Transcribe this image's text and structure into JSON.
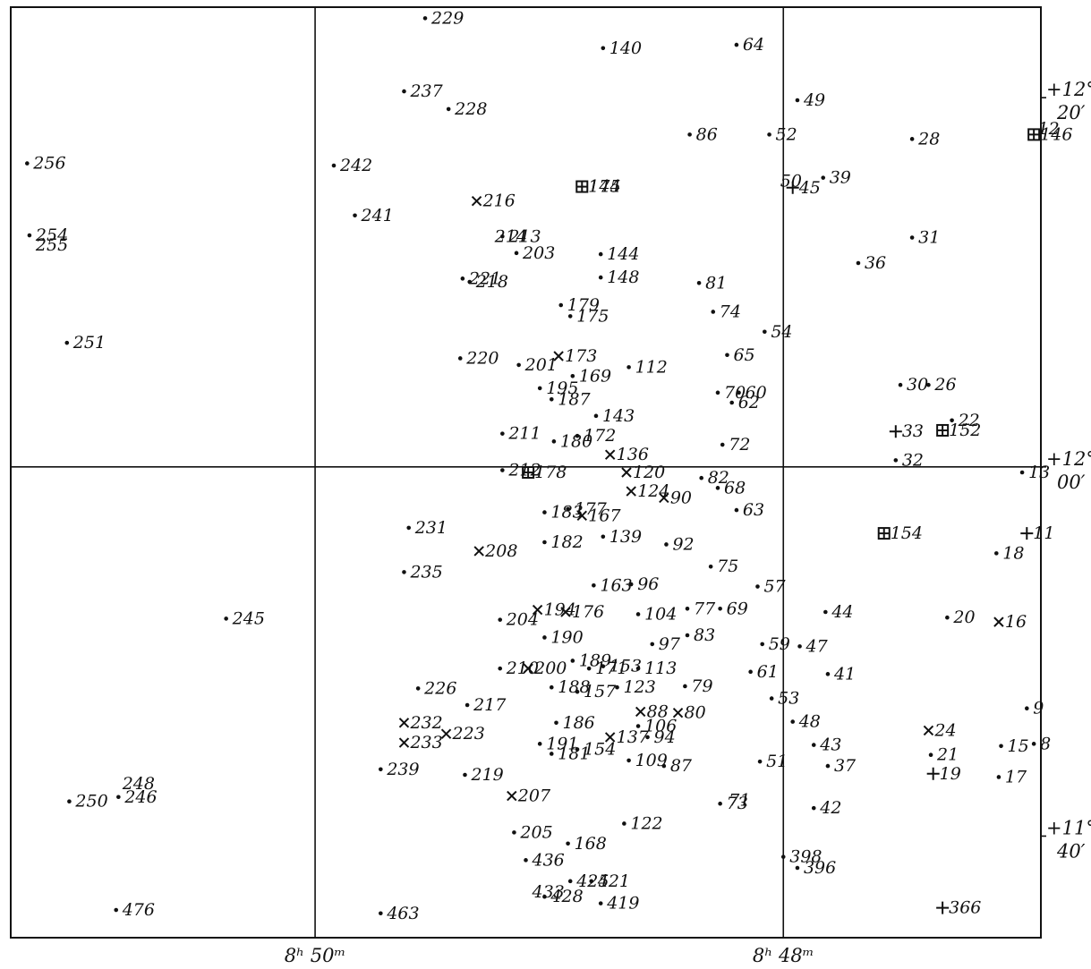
{
  "chart_data": {
    "type": "scatter",
    "xlim": [
      51.3,
      46.9
    ],
    "ylim": [
      11.575,
      12.415
    ],
    "grid": true,
    "x_ticks": [
      {
        "value": 50,
        "label": "8ʰ 50ᵐ"
      },
      {
        "value": 48,
        "label": "8ʰ 48ᵐ"
      }
    ],
    "y_ticks": [
      {
        "value": 12.3333,
        "label_a": "+12°",
        "label_b": "20′"
      },
      {
        "value": 12.0,
        "label_a": "+12°",
        "label_b": "00′"
      },
      {
        "value": 11.6667,
        "label_a": "+11°",
        "label_b": "40′"
      }
    ],
    "stars": [
      {
        "label": "229",
        "ra": 49.53,
        "dec": 12.405,
        "marker": "dot"
      },
      {
        "label": "140",
        "ra": 48.77,
        "dec": 12.378,
        "marker": "dot"
      },
      {
        "label": "64",
        "ra": 48.2,
        "dec": 12.381,
        "marker": "dot"
      },
      {
        "label": "237",
        "ra": 49.62,
        "dec": 12.339,
        "marker": "dot"
      },
      {
        "label": "228",
        "ra": 49.43,
        "dec": 12.323,
        "marker": "dot"
      },
      {
        "label": "49",
        "ra": 47.94,
        "dec": 12.331,
        "marker": "dot"
      },
      {
        "label": "86",
        "ra": 48.4,
        "dec": 12.3,
        "marker": "dot"
      },
      {
        "label": "52",
        "ra": 48.06,
        "dec": 12.3,
        "marker": "dot"
      },
      {
        "label": "12",
        "ra": 46.94,
        "dec": 12.305,
        "marker": "none"
      },
      {
        "label": "146",
        "ra": 46.93,
        "dec": 12.3,
        "marker": "boxcross"
      },
      {
        "label": "28",
        "ra": 47.45,
        "dec": 12.296,
        "marker": "dot"
      },
      {
        "label": "256",
        "ra": 51.23,
        "dec": 12.274,
        "marker": "dot"
      },
      {
        "label": "242",
        "ra": 49.92,
        "dec": 12.272,
        "marker": "dot"
      },
      {
        "label": "145",
        "ra": 48.86,
        "dec": 12.253,
        "marker": "none"
      },
      {
        "label": "174",
        "ra": 48.86,
        "dec": 12.253,
        "marker": "boxcross"
      },
      {
        "label": "50",
        "ra": 48.04,
        "dec": 12.258,
        "marker": "none"
      },
      {
        "label": "45",
        "ra": 47.96,
        "dec": 12.252,
        "marker": "plus"
      },
      {
        "label": "39",
        "ra": 47.83,
        "dec": 12.261,
        "marker": "dot"
      },
      {
        "label": "216",
        "ra": 49.31,
        "dec": 12.24,
        "marker": "cross"
      },
      {
        "label": "241",
        "ra": 49.83,
        "dec": 12.227,
        "marker": "dot"
      },
      {
        "label": "254",
        "ra": 51.22,
        "dec": 12.209,
        "marker": "dot"
      },
      {
        "label": "255",
        "ra": 51.22,
        "dec": 12.2,
        "marker": "none"
      },
      {
        "label": "214",
        "ra": 49.26,
        "dec": 12.208,
        "marker": "none"
      },
      {
        "label": "213",
        "ra": 49.2,
        "dec": 12.208,
        "marker": "dot"
      },
      {
        "label": "203",
        "ra": 49.14,
        "dec": 12.193,
        "marker": "dot"
      },
      {
        "label": "144",
        "ra": 48.78,
        "dec": 12.192,
        "marker": "dot"
      },
      {
        "label": "31",
        "ra": 47.45,
        "dec": 12.207,
        "marker": "dot"
      },
      {
        "label": "36",
        "ra": 47.68,
        "dec": 12.184,
        "marker": "dot"
      },
      {
        "label": "221",
        "ra": 49.37,
        "dec": 12.17,
        "marker": "dot"
      },
      {
        "label": "218",
        "ra": 49.34,
        "dec": 12.167,
        "marker": "dot"
      },
      {
        "label": "148",
        "ra": 48.78,
        "dec": 12.171,
        "marker": "dot"
      },
      {
        "label": "179",
        "ra": 48.95,
        "dec": 12.146,
        "marker": "dot"
      },
      {
        "label": "175",
        "ra": 48.91,
        "dec": 12.136,
        "marker": "dot"
      },
      {
        "label": "81",
        "ra": 48.36,
        "dec": 12.166,
        "marker": "dot"
      },
      {
        "label": "74",
        "ra": 48.3,
        "dec": 12.14,
        "marker": "dot"
      },
      {
        "label": "54",
        "ra": 48.08,
        "dec": 12.122,
        "marker": "dot"
      },
      {
        "label": "251",
        "ra": 51.06,
        "dec": 12.112,
        "marker": "dot"
      },
      {
        "label": "173",
        "ra": 48.96,
        "dec": 12.1,
        "marker": "cross"
      },
      {
        "label": "220",
        "ra": 49.38,
        "dec": 12.098,
        "marker": "dot"
      },
      {
        "label": "201",
        "ra": 49.13,
        "dec": 12.092,
        "marker": "dot"
      },
      {
        "label": "169",
        "ra": 48.9,
        "dec": 12.082,
        "marker": "dot"
      },
      {
        "label": "112",
        "ra": 48.66,
        "dec": 12.09,
        "marker": "dot"
      },
      {
        "label": "65",
        "ra": 48.24,
        "dec": 12.101,
        "marker": "dot"
      },
      {
        "label": "195",
        "ra": 49.04,
        "dec": 12.071,
        "marker": "dot"
      },
      {
        "label": "187",
        "ra": 48.99,
        "dec": 12.061,
        "marker": "dot"
      },
      {
        "label": "70",
        "ra": 48.28,
        "dec": 12.067,
        "marker": "dot"
      },
      {
        "label": "60",
        "ra": 48.19,
        "dec": 12.067,
        "marker": "dot"
      },
      {
        "label": "62",
        "ra": 48.22,
        "dec": 12.058,
        "marker": "dot"
      },
      {
        "label": "30",
        "ra": 47.5,
        "dec": 12.074,
        "marker": "dot"
      },
      {
        "label": "26",
        "ra": 47.38,
        "dec": 12.074,
        "marker": "dot"
      },
      {
        "label": "143",
        "ra": 48.8,
        "dec": 12.046,
        "marker": "dot"
      },
      {
        "label": "211",
        "ra": 49.2,
        "dec": 12.03,
        "marker": "dot"
      },
      {
        "label": "180",
        "ra": 48.98,
        "dec": 12.023,
        "marker": "dot"
      },
      {
        "label": "172",
        "ra": 48.88,
        "dec": 12.028,
        "marker": "dot"
      },
      {
        "label": "33",
        "ra": 47.52,
        "dec": 12.032,
        "marker": "plus"
      },
      {
        "label": "152",
        "ra": 47.32,
        "dec": 12.033,
        "marker": "boxcross"
      },
      {
        "label": "22",
        "ra": 47.28,
        "dec": 12.042,
        "marker": "dot"
      },
      {
        "label": "136",
        "ra": 48.74,
        "dec": 12.011,
        "marker": "cross"
      },
      {
        "label": "72",
        "ra": 48.26,
        "dec": 12.02,
        "marker": "dot"
      },
      {
        "label": "32",
        "ra": 47.52,
        "dec": 12.006,
        "marker": "dot"
      },
      {
        "label": "212",
        "ra": 49.2,
        "dec": 11.997,
        "marker": "dot"
      },
      {
        "label": "178",
        "ra": 49.09,
        "dec": 11.995,
        "marker": "boxcross"
      },
      {
        "label": "120",
        "ra": 48.67,
        "dec": 11.995,
        "marker": "cross"
      },
      {
        "label": "82",
        "ra": 48.35,
        "dec": 11.99,
        "marker": "dot"
      },
      {
        "label": "68",
        "ra": 48.28,
        "dec": 11.981,
        "marker": "dot"
      },
      {
        "label": "13",
        "ra": 46.98,
        "dec": 11.995,
        "marker": "dot"
      },
      {
        "label": "124",
        "ra": 48.65,
        "dec": 11.978,
        "marker": "cross"
      },
      {
        "label": "90",
        "ra": 48.51,
        "dec": 11.972,
        "marker": "cross"
      },
      {
        "label": "63",
        "ra": 48.2,
        "dec": 11.961,
        "marker": "dot"
      },
      {
        "label": "231",
        "ra": 49.6,
        "dec": 11.945,
        "marker": "dot"
      },
      {
        "label": "183",
        "ra": 49.02,
        "dec": 11.959,
        "marker": "dot"
      },
      {
        "label": "177",
        "ra": 48.92,
        "dec": 11.962,
        "marker": "dot"
      },
      {
        "label": "167",
        "ra": 48.86,
        "dec": 11.956,
        "marker": "cross"
      },
      {
        "label": "154",
        "ra": 47.57,
        "dec": 11.94,
        "marker": "boxcross"
      },
      {
        "label": "11",
        "ra": 46.96,
        "dec": 11.94,
        "marker": "plus"
      },
      {
        "label": "208",
        "ra": 49.3,
        "dec": 11.924,
        "marker": "cross"
      },
      {
        "label": "182",
        "ra": 49.02,
        "dec": 11.932,
        "marker": "dot"
      },
      {
        "label": "139",
        "ra": 48.77,
        "dec": 11.937,
        "marker": "dot"
      },
      {
        "label": "92",
        "ra": 48.5,
        "dec": 11.93,
        "marker": "dot"
      },
      {
        "label": "18",
        "ra": 47.09,
        "dec": 11.922,
        "marker": "dot"
      },
      {
        "label": "235",
        "ra": 49.62,
        "dec": 11.905,
        "marker": "dot"
      },
      {
        "label": "75",
        "ra": 48.31,
        "dec": 11.91,
        "marker": "dot"
      },
      {
        "label": "163",
        "ra": 48.81,
        "dec": 11.893,
        "marker": "dot"
      },
      {
        "label": "96",
        "ra": 48.65,
        "dec": 11.894,
        "marker": "dot"
      },
      {
        "label": "57",
        "ra": 48.11,
        "dec": 11.892,
        "marker": "dot"
      },
      {
        "label": "245",
        "ra": 50.38,
        "dec": 11.863,
        "marker": "dot"
      },
      {
        "label": "204",
        "ra": 49.21,
        "dec": 11.862,
        "marker": "dot"
      },
      {
        "label": "194",
        "ra": 49.05,
        "dec": 11.871,
        "marker": "cross"
      },
      {
        "label": "176",
        "ra": 48.93,
        "dec": 11.869,
        "marker": "cross"
      },
      {
        "label": "104",
        "ra": 48.62,
        "dec": 11.867,
        "marker": "dot"
      },
      {
        "label": "77",
        "ra": 48.41,
        "dec": 11.872,
        "marker": "dot"
      },
      {
        "label": "69",
        "ra": 48.27,
        "dec": 11.872,
        "marker": "dot"
      },
      {
        "label": "44",
        "ra": 47.82,
        "dec": 11.869,
        "marker": "dot"
      },
      {
        "label": "20",
        "ra": 47.3,
        "dec": 11.864,
        "marker": "dot"
      },
      {
        "label": "16",
        "ra": 47.08,
        "dec": 11.86,
        "marker": "cross"
      },
      {
        "label": "190",
        "ra": 49.02,
        "dec": 11.846,
        "marker": "dot"
      },
      {
        "label": "83",
        "ra": 48.41,
        "dec": 11.848,
        "marker": "dot"
      },
      {
        "label": "59",
        "ra": 48.09,
        "dec": 11.84,
        "marker": "dot"
      },
      {
        "label": "47",
        "ra": 47.93,
        "dec": 11.838,
        "marker": "dot"
      },
      {
        "label": "97",
        "ra": 48.56,
        "dec": 11.84,
        "marker": "dot"
      },
      {
        "label": "210",
        "ra": 49.21,
        "dec": 11.818,
        "marker": "dot"
      },
      {
        "label": "200",
        "ra": 49.09,
        "dec": 11.818,
        "marker": "cross"
      },
      {
        "label": "189",
        "ra": 48.9,
        "dec": 11.825,
        "marker": "dot"
      },
      {
        "label": "171",
        "ra": 48.83,
        "dec": 11.818,
        "marker": "dot"
      },
      {
        "label": "153",
        "ra": 48.77,
        "dec": 11.82,
        "marker": "dot"
      },
      {
        "label": "113",
        "ra": 48.62,
        "dec": 11.818,
        "marker": "dot"
      },
      {
        "label": "61",
        "ra": 48.14,
        "dec": 11.815,
        "marker": "dot"
      },
      {
        "label": "41",
        "ra": 47.81,
        "dec": 11.813,
        "marker": "dot"
      },
      {
        "label": "226",
        "ra": 49.56,
        "dec": 11.8,
        "marker": "dot"
      },
      {
        "label": "188",
        "ra": 48.99,
        "dec": 11.801,
        "marker": "dot"
      },
      {
        "label": "157",
        "ra": 48.88,
        "dec": 11.797,
        "marker": "dot"
      },
      {
        "label": "123",
        "ra": 48.71,
        "dec": 11.801,
        "marker": "dot"
      },
      {
        "label": "79",
        "ra": 48.42,
        "dec": 11.802,
        "marker": "dot"
      },
      {
        "label": "53",
        "ra": 48.05,
        "dec": 11.791,
        "marker": "dot"
      },
      {
        "label": "9",
        "ra": 46.96,
        "dec": 11.782,
        "marker": "dot"
      },
      {
        "label": "217",
        "ra": 49.35,
        "dec": 11.785,
        "marker": "dot"
      },
      {
        "label": "88",
        "ra": 48.61,
        "dec": 11.779,
        "marker": "cross"
      },
      {
        "label": "80",
        "ra": 48.45,
        "dec": 11.778,
        "marker": "cross"
      },
      {
        "label": "232",
        "ra": 49.62,
        "dec": 11.769,
        "marker": "cross"
      },
      {
        "label": "186",
        "ra": 48.97,
        "dec": 11.769,
        "marker": "dot"
      },
      {
        "label": "106",
        "ra": 48.62,
        "dec": 11.766,
        "marker": "dot"
      },
      {
        "label": "48",
        "ra": 47.96,
        "dec": 11.77,
        "marker": "dot"
      },
      {
        "label": "24",
        "ra": 47.38,
        "dec": 11.762,
        "marker": "cross"
      },
      {
        "label": "223",
        "ra": 49.44,
        "dec": 11.759,
        "marker": "cross"
      },
      {
        "label": "137",
        "ra": 48.74,
        "dec": 11.756,
        "marker": "cross"
      },
      {
        "label": "94",
        "ra": 48.58,
        "dec": 11.756,
        "marker": "dot"
      },
      {
        "label": "43",
        "ra": 47.87,
        "dec": 11.749,
        "marker": "dot"
      },
      {
        "label": "8",
        "ra": 46.93,
        "dec": 11.75,
        "marker": "dot"
      },
      {
        "label": "15",
        "ra": 47.07,
        "dec": 11.748,
        "marker": "dot"
      },
      {
        "label": "233",
        "ra": 49.62,
        "dec": 11.751,
        "marker": "cross"
      },
      {
        "label": "191",
        "ra": 49.04,
        "dec": 11.75,
        "marker": "dot"
      },
      {
        "label": "181",
        "ra": 48.99,
        "dec": 11.741,
        "marker": "dot"
      },
      {
        "label": "154",
        "ra": 48.88,
        "dec": 11.745,
        "marker": "dot"
      },
      {
        "label": "21",
        "ra": 47.37,
        "dec": 11.74,
        "marker": "dot"
      },
      {
        "label": "109",
        "ra": 48.66,
        "dec": 11.735,
        "marker": "dot"
      },
      {
        "label": "87",
        "ra": 48.51,
        "dec": 11.73,
        "marker": "dot"
      },
      {
        "label": "51",
        "ra": 48.1,
        "dec": 11.734,
        "marker": "dot"
      },
      {
        "label": "37",
        "ra": 47.81,
        "dec": 11.73,
        "marker": "dot"
      },
      {
        "label": "239",
        "ra": 49.72,
        "dec": 11.727,
        "marker": "dot"
      },
      {
        "label": "219",
        "ra": 49.36,
        "dec": 11.722,
        "marker": "dot"
      },
      {
        "label": "19",
        "ra": 47.36,
        "dec": 11.723,
        "marker": "plus"
      },
      {
        "label": "17",
        "ra": 47.08,
        "dec": 11.72,
        "marker": "dot"
      },
      {
        "label": "248",
        "ra": 50.85,
        "dec": 11.714,
        "marker": "none"
      },
      {
        "label": "246",
        "ra": 50.84,
        "dec": 11.702,
        "marker": "dot"
      },
      {
        "label": "250",
        "ra": 51.05,
        "dec": 11.698,
        "marker": "dot"
      },
      {
        "label": "207",
        "ra": 49.16,
        "dec": 11.703,
        "marker": "cross"
      },
      {
        "label": "73",
        "ra": 48.27,
        "dec": 11.696,
        "marker": "dot"
      },
      {
        "label": "71",
        "ra": 48.26,
        "dec": 11.699,
        "marker": "none"
      },
      {
        "label": "42",
        "ra": 47.87,
        "dec": 11.692,
        "marker": "dot"
      },
      {
        "label": "205",
        "ra": 49.15,
        "dec": 11.67,
        "marker": "dot"
      },
      {
        "label": "168",
        "ra": 48.92,
        "dec": 11.66,
        "marker": "dot"
      },
      {
        "label": "122",
        "ra": 48.68,
        "dec": 11.678,
        "marker": "dot"
      },
      {
        "label": "398",
        "ra": 48.0,
        "dec": 11.648,
        "marker": "dot"
      },
      {
        "label": "396",
        "ra": 47.94,
        "dec": 11.638,
        "marker": "dot"
      },
      {
        "label": "436",
        "ra": 49.1,
        "dec": 11.645,
        "marker": "dot"
      },
      {
        "label": "425",
        "ra": 48.91,
        "dec": 11.626,
        "marker": "dot"
      },
      {
        "label": "421",
        "ra": 48.82,
        "dec": 11.626,
        "marker": "dot"
      },
      {
        "label": "366",
        "ra": 47.32,
        "dec": 11.602,
        "marker": "plus"
      },
      {
        "label": "476",
        "ra": 50.85,
        "dec": 11.6,
        "marker": "dot"
      },
      {
        "label": "463",
        "ra": 49.72,
        "dec": 11.597,
        "marker": "dot"
      },
      {
        "label": "433",
        "ra": 49.1,
        "dec": 11.616,
        "marker": "none"
      },
      {
        "label": "428",
        "ra": 49.02,
        "dec": 11.612,
        "marker": "dot"
      },
      {
        "label": "419",
        "ra": 48.78,
        "dec": 11.606,
        "marker": "dot"
      }
    ]
  }
}
